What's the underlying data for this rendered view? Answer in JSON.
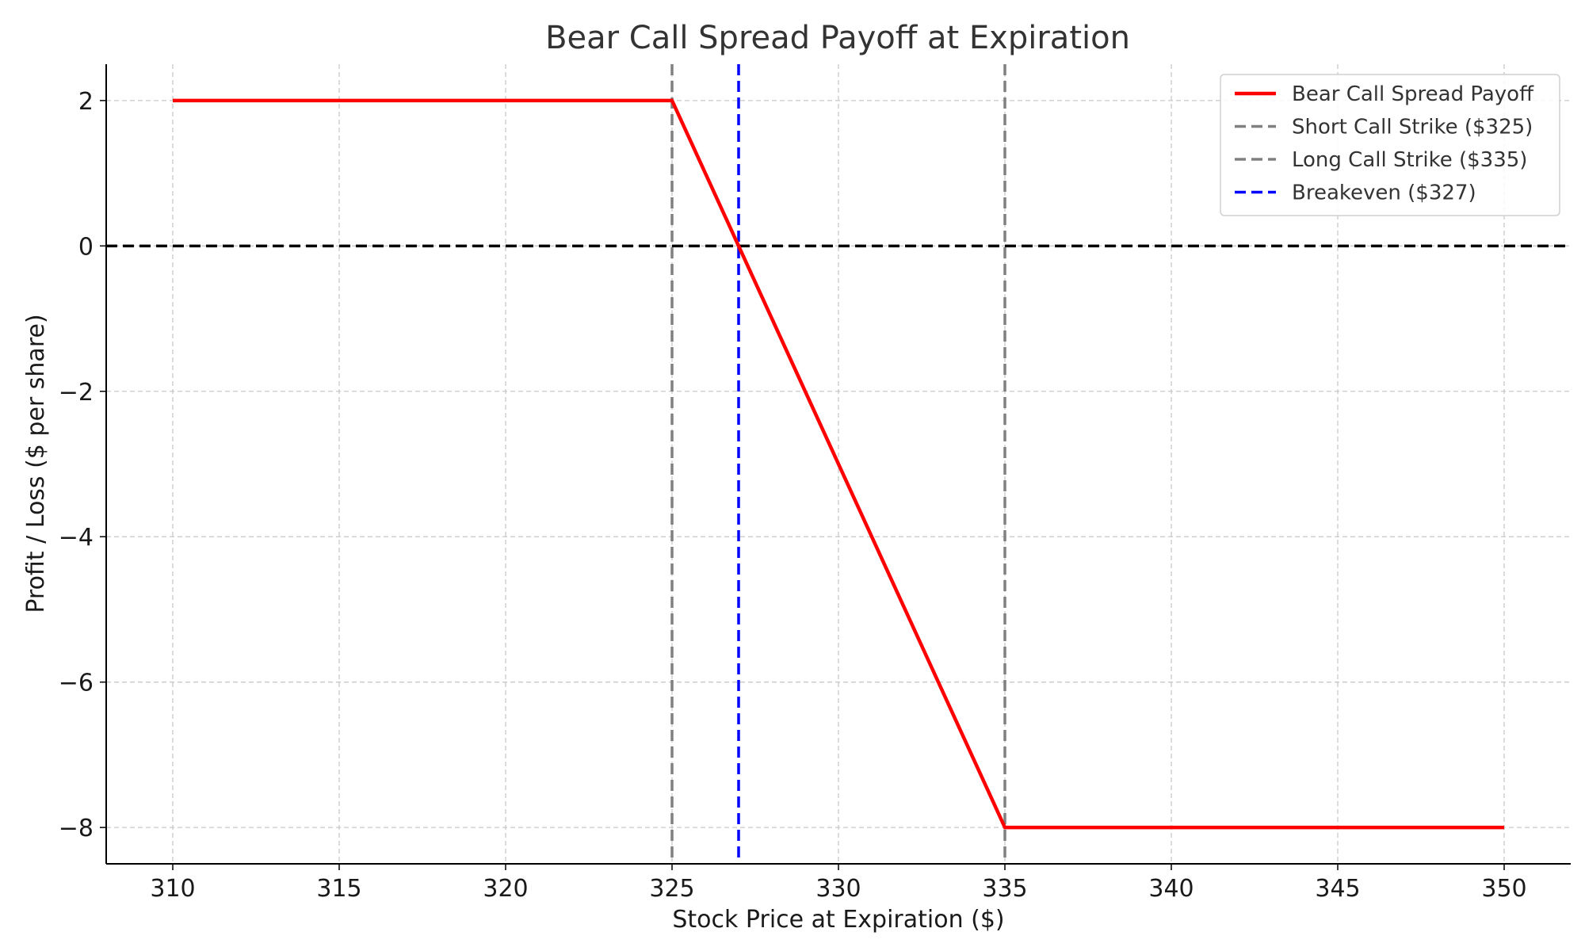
{
  "chart_data": {
    "type": "line",
    "title": "Bear Call Spread Payoff at Expiration",
    "xlabel": "Stock Price at Expiration ($)",
    "ylabel": "Profit / Loss ($ per share)",
    "xlim": [
      308,
      352
    ],
    "ylim": [
      -8.5,
      2.5
    ],
    "xticks": [
      310,
      315,
      320,
      325,
      330,
      335,
      340,
      345,
      350
    ],
    "yticks": [
      2,
      0,
      -2,
      -4,
      -6,
      -8
    ],
    "ytick_labels": [
      "2",
      "0",
      "−2",
      "−4",
      "−6",
      "−8"
    ],
    "grid": true,
    "legend_position": "top-right",
    "series": [
      {
        "name": "Bear Call Spread Payoff",
        "color": "#ff0000",
        "style": "solid",
        "x": [
          310,
          325,
          335,
          350
        ],
        "y": [
          2,
          2,
          -8,
          -8
        ]
      }
    ],
    "vertical_lines": [
      {
        "name": "Short Call Strike ($325)",
        "x": 325,
        "color": "#808080",
        "style": "dashed"
      },
      {
        "name": "Long Call Strike ($335)",
        "x": 335,
        "color": "#808080",
        "style": "dashed"
      },
      {
        "name": "Breakeven ($327)",
        "x": 327,
        "color": "#0000ff",
        "style": "dashed"
      }
    ],
    "horizontal_lines": [
      {
        "y": 0,
        "color": "#000000",
        "style": "dashed"
      }
    ],
    "legend": [
      {
        "label": "Bear Call Spread Payoff",
        "color": "#ff0000",
        "style": "solid"
      },
      {
        "label": "Short Call Strike ($325)",
        "color": "#808080",
        "style": "dashed"
      },
      {
        "label": "Long Call Strike ($335)",
        "color": "#808080",
        "style": "dashed"
      },
      {
        "label": "Breakeven ($327)",
        "color": "#0000ff",
        "style": "dashed"
      }
    ]
  }
}
